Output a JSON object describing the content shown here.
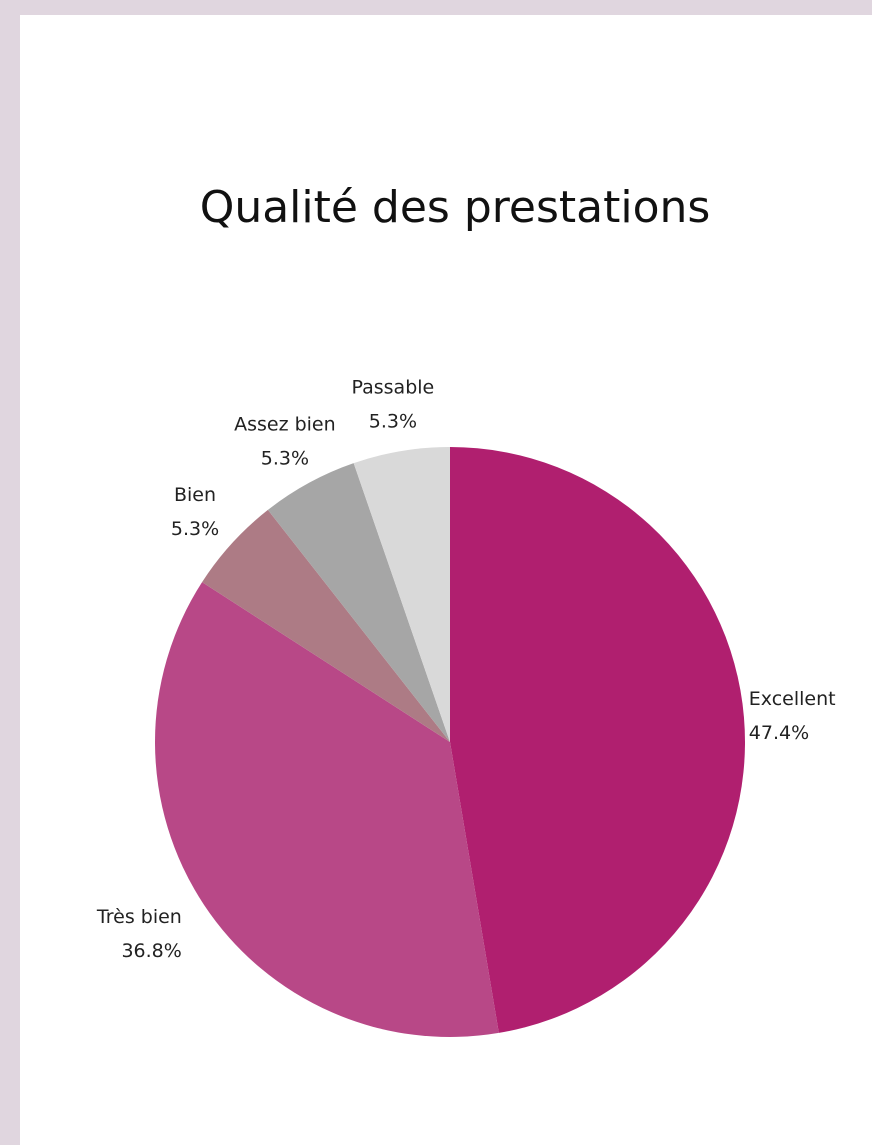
{
  "chart_data": {
    "type": "pie",
    "title": "Qualité des prestations",
    "categories": [
      "Excellent",
      "Très bien",
      "Bien",
      "Assez bien",
      "Passable"
    ],
    "values": [
      47.4,
      36.8,
      5.3,
      5.3,
      5.3
    ],
    "value_labels": [
      "47.4%",
      "36.8%",
      "5.3%",
      "5.3%",
      "5.3%"
    ],
    "colors": [
      "#b01f6f",
      "#b84887",
      "#ad7b85",
      "#a6a6a6",
      "#d9d9d9"
    ]
  }
}
